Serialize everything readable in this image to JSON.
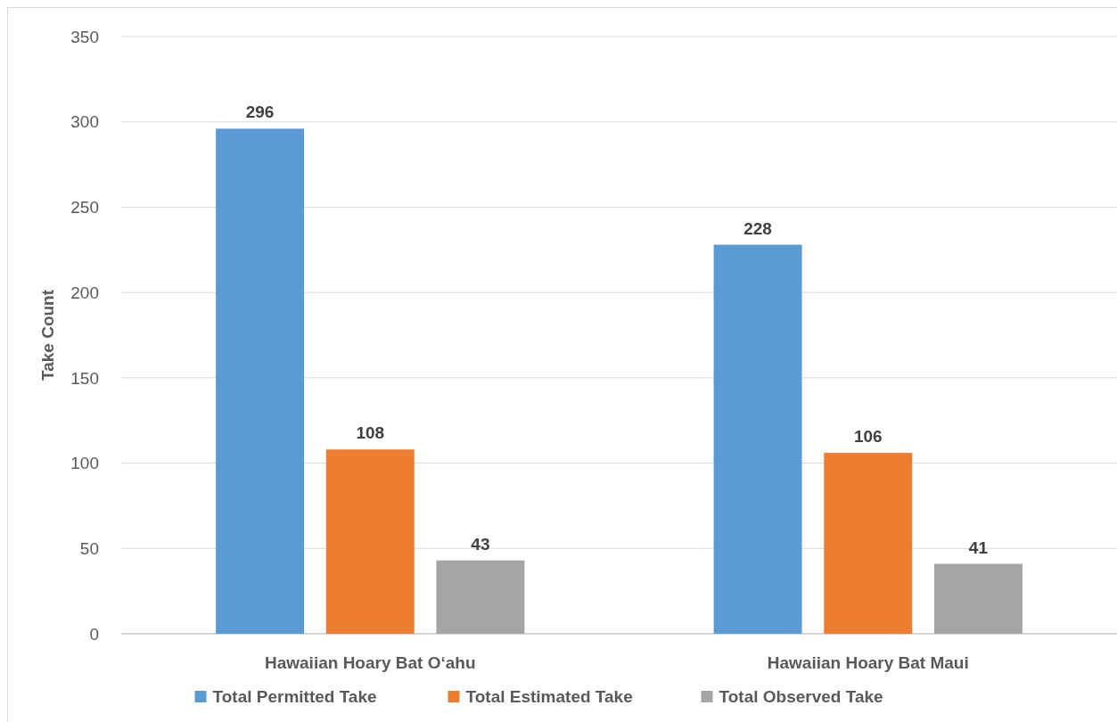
{
  "chart_data": {
    "type": "bar",
    "ylabel": "Take Count",
    "categories": [
      "Hawaiian Hoary Bat O‘ahu",
      "Hawaiian Hoary Bat Maui"
    ],
    "series": [
      {
        "name": "Total Permitted Take",
        "color": "#5b9bd5",
        "values": [
          296,
          228
        ]
      },
      {
        "name": "Total Estimated Take",
        "color": "#ed7d31",
        "values": [
          108,
          106
        ]
      },
      {
        "name": "Total Observed Take",
        "color": "#a5a5a5",
        "values": [
          43,
          41
        ]
      }
    ],
    "ylim": [
      0,
      350
    ],
    "yticks": [
      0,
      50,
      100,
      150,
      200,
      250,
      300,
      350
    ],
    "grid": "y",
    "legend": "bottom",
    "data_labels": true
  }
}
